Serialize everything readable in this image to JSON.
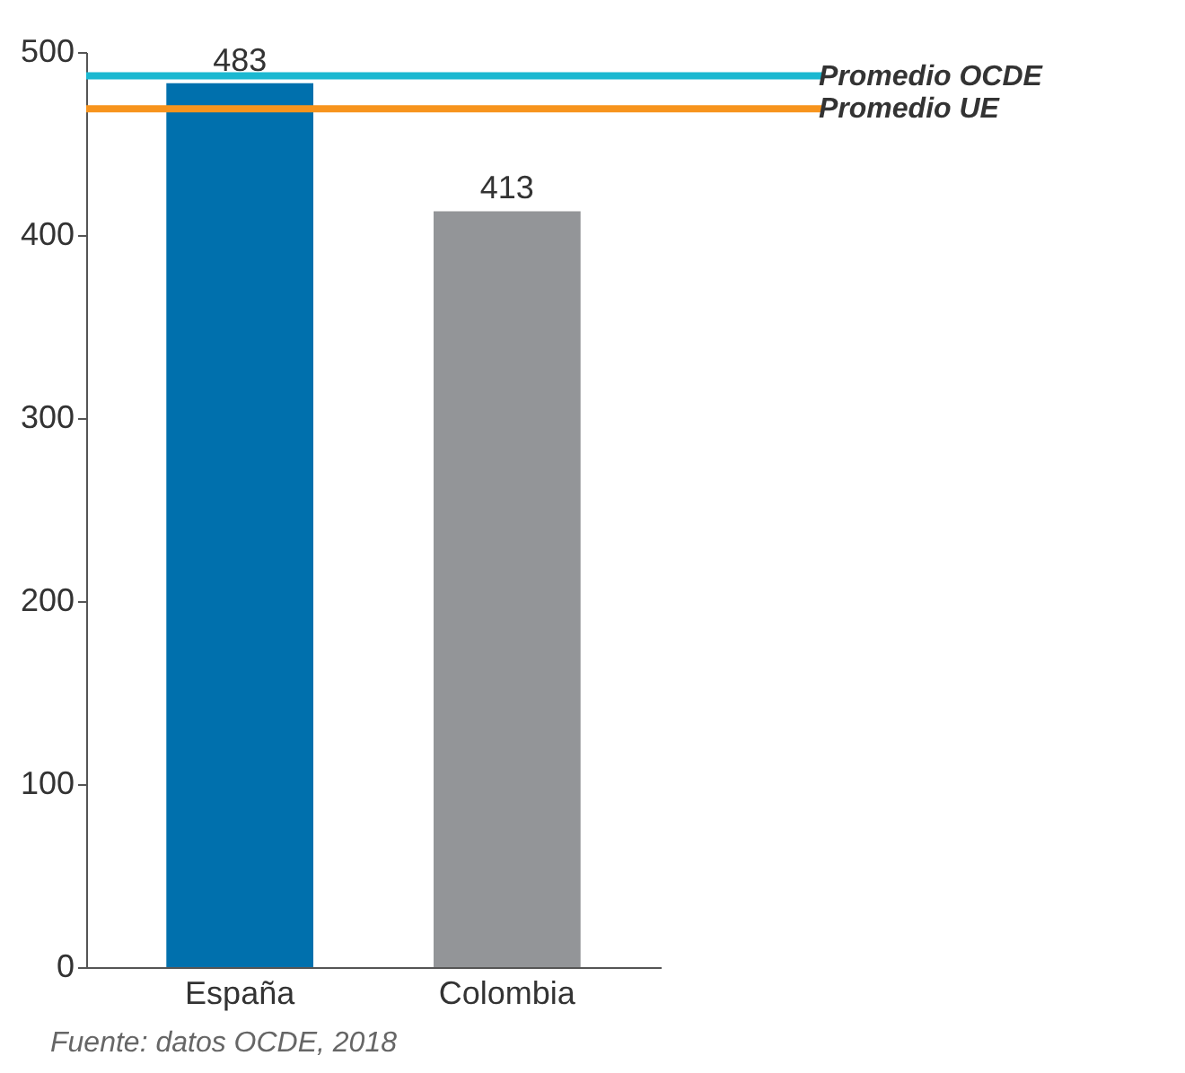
{
  "chart_data": {
    "type": "bar",
    "categories": [
      "España",
      "Colombia"
    ],
    "values": [
      483,
      413
    ],
    "colors": [
      "#0070ad",
      "#939598"
    ],
    "ylim": [
      0,
      500
    ],
    "yticks": [
      0,
      100,
      200,
      300,
      400,
      500
    ],
    "grid": false,
    "data_labels": true,
    "ref_lines": [
      {
        "axis": "y",
        "value": 487,
        "label": "Promedio OCDE",
        "color": "#1bb8d1",
        "line_style": "solid"
      },
      {
        "axis": "y",
        "value": 469,
        "label": "Promedio UE",
        "color": "#f7941d",
        "line_style": "solid"
      }
    ],
    "annotations": [
      "Fuente: datos OCDE, 2018"
    ]
  }
}
